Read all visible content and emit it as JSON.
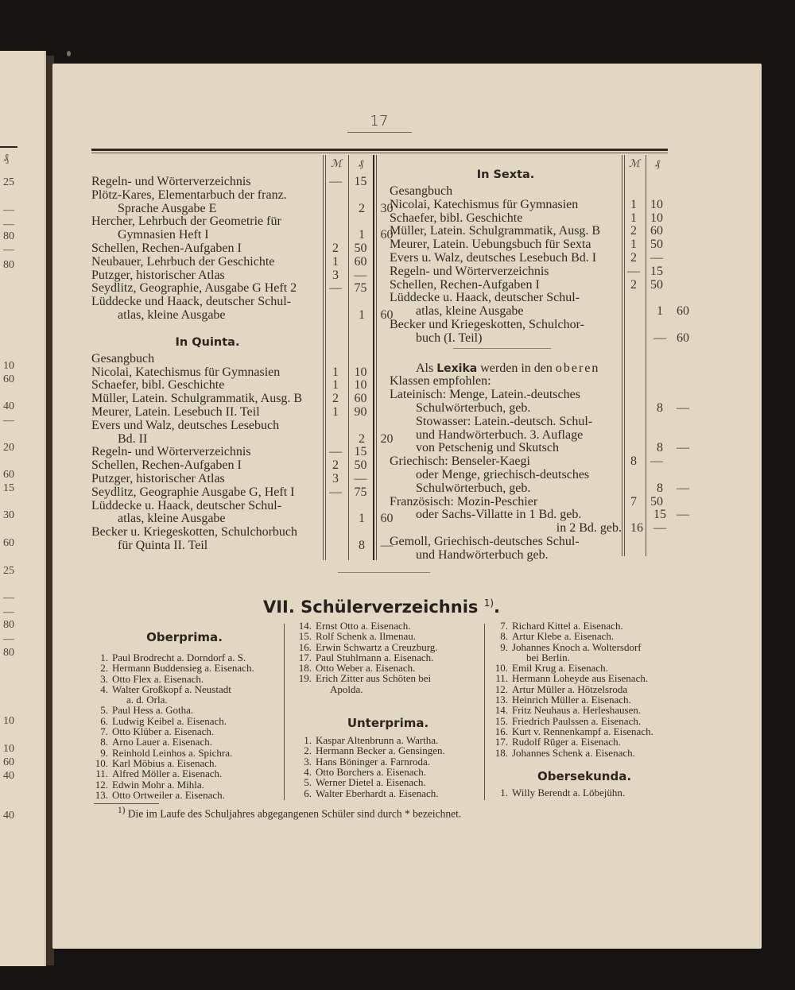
{
  "page_number": "17",
  "facing_page": {
    "values": [
      "₰",
      "25",
      "—",
      "—",
      "80",
      "—",
      "80",
      "10",
      "60",
      "40",
      "—",
      "20",
      "60",
      "15",
      "30",
      "60",
      "25",
      "—",
      "—",
      "80",
      "—",
      "80",
      "10",
      "10",
      "60",
      "40",
      "40"
    ]
  },
  "table_headers": {
    "mark": "ℳ",
    "pfennig": "₰"
  },
  "left_column": {
    "top_entries": [
      {
        "lines": [
          "Regeln- und Wörterverzeichnis"
        ],
        "m": "—",
        "pf": "15"
      },
      {
        "lines": [
          "Plötz-Kares, Elementarbuch der franz.",
          "Sprache Ausgabe E"
        ],
        "m": "2",
        "pf": "30"
      },
      {
        "lines": [
          "Hercher, Lehrbuch der Geometrie für",
          "Gymnasien Heft I"
        ],
        "m": "1",
        "pf": "60"
      },
      {
        "lines": [
          "Schellen, Rechen-Aufgaben I"
        ],
        "m": "2",
        "pf": "50"
      },
      {
        "lines": [
          "Neubauer, Lehrbuch der Geschichte"
        ],
        "m": "1",
        "pf": "60"
      },
      {
        "lines": [
          "Putzger, historischer Atlas"
        ],
        "m": "3",
        "pf": "—"
      },
      {
        "lines": [
          "Seydlitz, Geographie, Ausgabe G Heft 2"
        ],
        "m": "—",
        "pf": "75"
      },
      {
        "lines": [
          "Lüddecke und Haack, deutscher Schul-",
          "atlas, kleine Ausgabe"
        ],
        "m": "1",
        "pf": "60"
      }
    ],
    "quinta": {
      "heading": "In Quinta.",
      "entries": [
        {
          "lines": [
            "Gesangbuch"
          ],
          "m": "",
          "pf": ""
        },
        {
          "lines": [
            "Nicolai, Katechismus für Gymnasien"
          ],
          "m": "1",
          "pf": "10"
        },
        {
          "lines": [
            "Schaefer, bibl. Geschichte"
          ],
          "m": "1",
          "pf": "10"
        },
        {
          "lines": [
            "Müller, Latein. Schulgrammatik, Ausg. B"
          ],
          "m": "2",
          "pf": "60"
        },
        {
          "lines": [
            "Meurer, Latein. Lesebuch II. Teil"
          ],
          "m": "1",
          "pf": "90"
        },
        {
          "lines": [
            "Evers und Walz, deutsches Lesebuch",
            "Bd. II"
          ],
          "m": "2",
          "pf": "20"
        },
        {
          "lines": [
            "Regeln- und Wörterverzeichnis"
          ],
          "m": "—",
          "pf": "15"
        },
        {
          "lines": [
            "Schellen, Rechen-Aufgaben I"
          ],
          "m": "2",
          "pf": "50"
        },
        {
          "lines": [
            "Putzger, historischer Atlas"
          ],
          "m": "3",
          "pf": "—"
        },
        {
          "lines": [
            "Seydlitz, Geographie Ausgabe G, Heft I"
          ],
          "m": "—",
          "pf": "75"
        },
        {
          "lines": [
            "Lüddecke u. Haack, deutscher Schul-",
            "atlas, kleine Ausgabe"
          ],
          "m": "1",
          "pf": "60"
        },
        {
          "lines": [
            "Becker u. Kriegeskotten, Schulchorbuch",
            "für Quinta II. Teil"
          ],
          "m": "8",
          "pf": "—"
        }
      ]
    }
  },
  "right_column": {
    "sexta": {
      "heading": "In Sexta.",
      "entries": [
        {
          "lines": [
            "Gesangbuch"
          ],
          "m": "",
          "pf": ""
        },
        {
          "lines": [
            "Nicolai, Katechismus für Gymnasien"
          ],
          "m": "1",
          "pf": "10"
        },
        {
          "lines": [
            "Schaefer, bibl. Geschichte"
          ],
          "m": "1",
          "pf": "10"
        },
        {
          "lines": [
            "Müller, Latein. Schulgrammatik, Ausg. B"
          ],
          "m": "2",
          "pf": "60"
        },
        {
          "lines": [
            "Meurer, Latein. Uebungsbuch für Sexta"
          ],
          "m": "1",
          "pf": "50"
        },
        {
          "lines": [
            "Evers u. Walz, deutsches Lesebuch Bd. I"
          ],
          "m": "2",
          "pf": "—"
        },
        {
          "lines": [
            "Regeln- und Wörterverzeichnis"
          ],
          "m": "—",
          "pf": "15"
        },
        {
          "lines": [
            "Schellen, Rechen-Aufgaben I"
          ],
          "m": "2",
          "pf": "50"
        },
        {
          "lines": [
            "Lüddecke u. Haack, deutscher Schul-",
            "atlas, kleine Ausgabe"
          ],
          "m": "1",
          "pf": "60"
        },
        {
          "lines": [
            "Becker und Kriegeskotten, Schulchor-",
            "buch (I. Teil)"
          ],
          "m": "—",
          "pf": "60"
        }
      ]
    },
    "lexika": {
      "intro_pre": "Als ",
      "intro_bold": "Lexika",
      "intro_mid": " werden in den ",
      "intro_spaced": "oberen",
      "intro_line2": "Klassen empfohlen:",
      "entries": [
        {
          "lines": [
            "Lateinisch: Menge, Latein.-deutsches",
            "Schulwörterbuch, geb."
          ],
          "m": "8",
          "pf": "—"
        },
        {
          "lines": [
            "Stowasser: Latein.-deutsch. Schul-",
            "und Handwörterbuch. 3. Auflage",
            "von Petschenig und Skutsch"
          ],
          "m": "8",
          "pf": "—"
        },
        {
          "lines": [
            "Griechisch: Benseler-Kaegi"
          ],
          "m": "8",
          "pf": "—"
        },
        {
          "lines": [
            "oder Menge, griechisch-deutsches",
            "Schulwörterbuch, geb."
          ],
          "m": "8",
          "pf": "—"
        },
        {
          "lines": [
            "Französisch: Mozin-Peschier"
          ],
          "m": "7",
          "pf": "50"
        },
        {
          "lines": [
            "oder Sachs-Villatte in 1 Bd. geb."
          ],
          "m": "15",
          "pf": "—"
        },
        {
          "lines": [
            "in 2 Bd. geb."
          ],
          "m": "16",
          "pf": "—"
        },
        {
          "lines": [
            "Gemoll, Griechisch-deutsches Schul-",
            "und Handwörterbuch geb."
          ],
          "m": "",
          "pf": ""
        }
      ]
    }
  },
  "register": {
    "section_number": "VII.",
    "title": "Schülerverzeichnis",
    "footnote_ref": "1)",
    "columns": [
      {
        "blocks": [
          {
            "heading": "Oberprima",
            "students": [
              {
                "no": "1.",
                "lines": [
                  "Paul Brodrecht a. Dorndorf a. S."
                ]
              },
              {
                "no": "2.",
                "lines": [
                  "Hermann Buddensieg a. Eisenach."
                ]
              },
              {
                "no": "3.",
                "lines": [
                  "Otto Flex a. Eisenach."
                ]
              },
              {
                "no": "4.",
                "lines": [
                  "Walter Großkopf a. Neustadt",
                  "a. d. Orla."
                ]
              },
              {
                "no": "5.",
                "lines": [
                  "Paul Hess a. Gotha."
                ]
              },
              {
                "no": "6.",
                "lines": [
                  "Ludwig Keibel a. Eisenach."
                ]
              },
              {
                "no": "7.",
                "lines": [
                  "Otto Klüber a. Eisenach."
                ]
              },
              {
                "no": "8.",
                "lines": [
                  "Arno Lauer a. Eisenach."
                ]
              },
              {
                "no": "9.",
                "lines": [
                  "Reinhold Leinhos a. Spichra."
                ]
              },
              {
                "no": "10.",
                "lines": [
                  "Karl Möbius a. Eisenach."
                ]
              },
              {
                "no": "11.",
                "lines": [
                  "Alfred Möller a. Eisenach."
                ]
              },
              {
                "no": "12.",
                "lines": [
                  "Edwin Mohr a. Mihla."
                ]
              },
              {
                "no": "13.",
                "lines": [
                  "Otto Ortweiler a. Eisenach."
                ]
              }
            ]
          }
        ]
      },
      {
        "blocks": [
          {
            "heading": "",
            "students": [
              {
                "no": "14.",
                "lines": [
                  "Ernst Otto a. Eisenach."
                ]
              },
              {
                "no": "15.",
                "lines": [
                  "Rolf Schenk a. Ilmenau."
                ]
              },
              {
                "no": "16.",
                "lines": [
                  "Erwin Schwartz a Creuzburg."
                ]
              },
              {
                "no": "17.",
                "lines": [
                  "Paul Stuhlmann a. Eisenach."
                ]
              },
              {
                "no": "18.",
                "lines": [
                  "Otto Weber a. Eisenach."
                ]
              },
              {
                "no": "19.",
                "lines": [
                  "Erich Zitter aus Schöten bei",
                  "Apolda."
                ]
              }
            ]
          },
          {
            "heading": "Unterprima",
            "students": [
              {
                "no": "1.",
                "lines": [
                  "Kaspar Altenbrunn a. Wartha."
                ]
              },
              {
                "no": "2.",
                "lines": [
                  "Hermann Becker a. Gensingen."
                ]
              },
              {
                "no": "3.",
                "lines": [
                  "Hans Böninger a. Farnroda."
                ]
              },
              {
                "no": "4.",
                "lines": [
                  "Otto Borchers a. Eisenach."
                ]
              },
              {
                "no": "5.",
                "lines": [
                  "Werner Dietel a. Eisenach."
                ]
              },
              {
                "no": "6.",
                "lines": [
                  "Walter Eberhardt a. Eisenach."
                ]
              }
            ]
          }
        ]
      },
      {
        "blocks": [
          {
            "heading": "",
            "students": [
              {
                "no": "7.",
                "lines": [
                  "Richard Kittel a. Eisenach."
                ]
              },
              {
                "no": "8.",
                "lines": [
                  "Artur Klebe a. Eisenach."
                ]
              },
              {
                "no": "9.",
                "lines": [
                  "Johannes Knoch a. Woltersdorf",
                  "bei Berlin."
                ]
              },
              {
                "no": "10.",
                "lines": [
                  "Emil Krug a. Eisenach."
                ]
              },
              {
                "no": "11.",
                "lines": [
                  "Hermann Loheyde aus Eisenach."
                ]
              },
              {
                "no": "12.",
                "lines": [
                  "Artur Müller a. Hötzelsroda"
                ]
              },
              {
                "no": "13.",
                "lines": [
                  "Heinrich Müller a. Eisenach."
                ]
              },
              {
                "no": "14.",
                "lines": [
                  "Fritz Neuhaus a. Herleshausen."
                ]
              },
              {
                "no": "15.",
                "lines": [
                  "Friedrich Paulssen a. Eisenach."
                ]
              },
              {
                "no": "16.",
                "lines": [
                  "Kurt v. Rennenkampf a. Eisenach."
                ]
              },
              {
                "no": "17.",
                "lines": [
                  "Rudolf Rüger a. Eisenach."
                ]
              },
              {
                "no": "18.",
                "lines": [
                  "Johannes Schenk a. Eisenach."
                ]
              }
            ]
          },
          {
            "heading": "Obersekunda",
            "students": [
              {
                "no": "1.",
                "lines": [
                  "Willy Berendt a. Löbejühn."
                ]
              }
            ]
          }
        ]
      }
    ]
  },
  "footnote": {
    "mark": "1)",
    "text": "Die im Laufe des Schuljahres abgegangenen Schüler sind durch * bezeichnet."
  }
}
